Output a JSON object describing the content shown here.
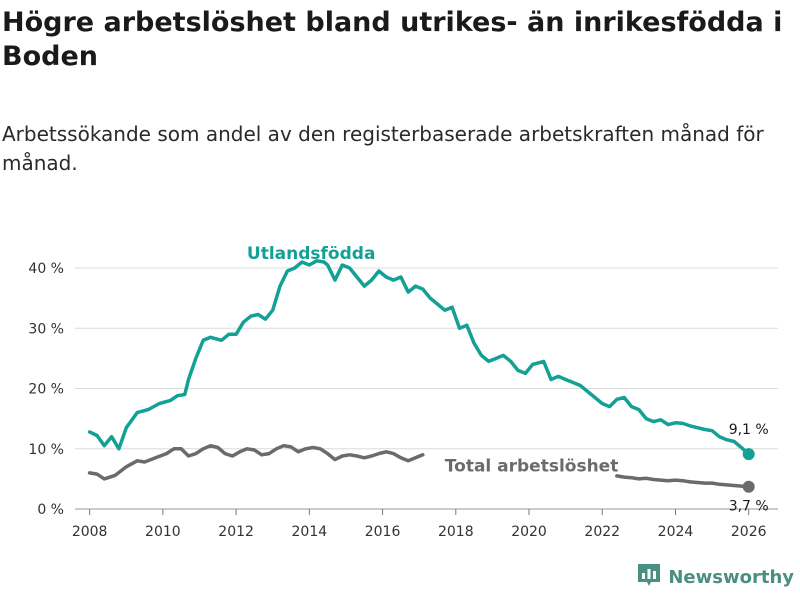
{
  "header": {
    "title": "Högre arbetslöshet bland utrikes- än inrikesfödda i Boden",
    "subtitle": "Arbetssökande som andel av den registerbaserade arbetskraften månad för månad."
  },
  "brand": {
    "name": "Newsworthy",
    "icon": "newsworthy-logo-icon",
    "color": "#4a8f80"
  },
  "chart_data": {
    "type": "line",
    "title": "Högre arbetslöshet bland utrikes- än inrikesfödda i Boden",
    "subtitle": "Arbetssökande som andel av den registerbaserade arbetskraften månad för månad.",
    "xlabel": "",
    "ylabel": "",
    "xlim": [
      2007.6,
      2026.8
    ],
    "ylim": [
      0,
      40
    ],
    "x_ticks": [
      2008,
      2010,
      2012,
      2014,
      2016,
      2018,
      2020,
      2022,
      2024,
      2026
    ],
    "x_tick_labels": [
      "2008",
      "2010",
      "2012",
      "2014",
      "2016",
      "2018",
      "2020",
      "2022",
      "2024",
      "2026"
    ],
    "y_ticks": [
      0,
      10,
      20,
      30,
      40
    ],
    "y_tick_labels": [
      "0 %",
      "10 %",
      "20 %",
      "30 %",
      "40 %"
    ],
    "grid": true,
    "series": [
      {
        "name": "Utlandsfödda",
        "color": "#13a196",
        "end_label": "9,1 %",
        "points": [
          [
            2008.0,
            12.8
          ],
          [
            2008.2,
            12.2
          ],
          [
            2008.4,
            10.5
          ],
          [
            2008.6,
            12.0
          ],
          [
            2008.8,
            10.0
          ],
          [
            2009.0,
            13.5
          ],
          [
            2009.3,
            16.0
          ],
          [
            2009.6,
            16.5
          ],
          [
            2009.9,
            17.5
          ],
          [
            2010.2,
            18.0
          ],
          [
            2010.4,
            18.8
          ],
          [
            2010.6,
            19.0
          ],
          [
            2010.7,
            21.5
          ],
          [
            2010.9,
            25.0
          ],
          [
            2011.1,
            28.0
          ],
          [
            2011.3,
            28.5
          ],
          [
            2011.6,
            28.0
          ],
          [
            2011.8,
            29.0
          ],
          [
            2012.0,
            29.0
          ],
          [
            2012.2,
            31.0
          ],
          [
            2012.4,
            32.0
          ],
          [
            2012.6,
            32.3
          ],
          [
            2012.8,
            31.5
          ],
          [
            2013.0,
            33.0
          ],
          [
            2013.2,
            37.0
          ],
          [
            2013.4,
            39.5
          ],
          [
            2013.6,
            40.0
          ],
          [
            2013.8,
            41.0
          ],
          [
            2014.0,
            40.5
          ],
          [
            2014.2,
            41.2
          ],
          [
            2014.4,
            41.0
          ],
          [
            2014.5,
            40.5
          ],
          [
            2014.7,
            38.0
          ],
          [
            2014.9,
            40.5
          ],
          [
            2015.1,
            40.0
          ],
          [
            2015.3,
            38.5
          ],
          [
            2015.5,
            37.0
          ],
          [
            2015.7,
            38.0
          ],
          [
            2015.9,
            39.5
          ],
          [
            2016.1,
            38.5
          ],
          [
            2016.3,
            38.0
          ],
          [
            2016.5,
            38.5
          ],
          [
            2016.7,
            36.0
          ],
          [
            2016.9,
            37.0
          ],
          [
            2017.1,
            36.5
          ],
          [
            2017.3,
            35.0
          ],
          [
            2017.5,
            34.0
          ],
          [
            2017.7,
            33.0
          ],
          [
            2017.9,
            33.5
          ],
          [
            2018.1,
            30.0
          ],
          [
            2018.3,
            30.5
          ],
          [
            2018.5,
            27.5
          ],
          [
            2018.7,
            25.5
          ],
          [
            2018.9,
            24.5
          ],
          [
            2019.1,
            25.0
          ],
          [
            2019.3,
            25.5
          ],
          [
            2019.5,
            24.5
          ],
          [
            2019.7,
            23.0
          ],
          [
            2019.9,
            22.5
          ],
          [
            2020.1,
            24.0
          ],
          [
            2020.4,
            24.5
          ],
          [
            2020.6,
            21.5
          ],
          [
            2020.8,
            22.0
          ],
          [
            2021.0,
            21.5
          ],
          [
            2021.2,
            21.0
          ],
          [
            2021.4,
            20.5
          ],
          [
            2021.6,
            19.5
          ],
          [
            2021.8,
            18.5
          ],
          [
            2022.0,
            17.5
          ],
          [
            2022.2,
            17.0
          ],
          [
            2022.4,
            18.2
          ],
          [
            2022.6,
            18.5
          ],
          [
            2022.8,
            17.0
          ],
          [
            2023.0,
            16.5
          ],
          [
            2023.2,
            15.0
          ],
          [
            2023.4,
            14.5
          ],
          [
            2023.6,
            14.8
          ],
          [
            2023.8,
            14.0
          ],
          [
            2024.0,
            14.3
          ],
          [
            2024.2,
            14.2
          ],
          [
            2024.4,
            13.8
          ],
          [
            2024.6,
            13.5
          ],
          [
            2024.8,
            13.2
          ],
          [
            2025.0,
            13.0
          ],
          [
            2025.2,
            12.0
          ],
          [
            2025.4,
            11.5
          ],
          [
            2025.6,
            11.2
          ],
          [
            2025.8,
            10.2
          ],
          [
            2026.0,
            9.1
          ]
        ]
      },
      {
        "name": "Total arbetslöshet",
        "color": "#6b6b6b",
        "end_label": "3,7 %",
        "points": [
          [
            2008.0,
            6.0
          ],
          [
            2008.2,
            5.8
          ],
          [
            2008.4,
            5.0
          ],
          [
            2008.7,
            5.6
          ],
          [
            2009.0,
            7.0
          ],
          [
            2009.3,
            8.0
          ],
          [
            2009.5,
            7.8
          ],
          [
            2009.8,
            8.5
          ],
          [
            2010.1,
            9.2
          ],
          [
            2010.3,
            10.0
          ],
          [
            2010.5,
            10.0
          ],
          [
            2010.7,
            8.8
          ],
          [
            2010.9,
            9.2
          ],
          [
            2011.1,
            10.0
          ],
          [
            2011.3,
            10.5
          ],
          [
            2011.5,
            10.2
          ],
          [
            2011.7,
            9.2
          ],
          [
            2011.9,
            8.8
          ],
          [
            2012.1,
            9.5
          ],
          [
            2012.3,
            10.0
          ],
          [
            2012.5,
            9.8
          ],
          [
            2012.7,
            9.0
          ],
          [
            2012.9,
            9.2
          ],
          [
            2013.1,
            10.0
          ],
          [
            2013.3,
            10.5
          ],
          [
            2013.5,
            10.3
          ],
          [
            2013.7,
            9.5
          ],
          [
            2013.9,
            10.0
          ],
          [
            2014.1,
            10.2
          ],
          [
            2014.3,
            10.0
          ],
          [
            2014.5,
            9.2
          ],
          [
            2014.7,
            8.2
          ],
          [
            2014.9,
            8.8
          ],
          [
            2015.1,
            9.0
          ],
          [
            2015.3,
            8.8
          ],
          [
            2015.5,
            8.5
          ],
          [
            2015.7,
            8.8
          ],
          [
            2015.9,
            9.2
          ],
          [
            2016.1,
            9.5
          ],
          [
            2016.3,
            9.2
          ],
          [
            2016.5,
            8.5
          ],
          [
            2016.7,
            8.0
          ],
          [
            2016.9,
            8.5
          ],
          [
            2017.1,
            9.0
          ],
          null,
          [
            2022.4,
            5.5
          ],
          [
            2022.6,
            5.3
          ],
          [
            2022.8,
            5.2
          ],
          [
            2023.0,
            5.0
          ],
          [
            2023.2,
            5.1
          ],
          [
            2023.4,
            4.9
          ],
          [
            2023.6,
            4.8
          ],
          [
            2023.8,
            4.7
          ],
          [
            2024.0,
            4.8
          ],
          [
            2024.2,
            4.7
          ],
          [
            2024.4,
            4.5
          ],
          [
            2024.6,
            4.4
          ],
          [
            2024.8,
            4.3
          ],
          [
            2025.0,
            4.3
          ],
          [
            2025.2,
            4.1
          ],
          [
            2025.4,
            4.0
          ],
          [
            2025.6,
            3.9
          ],
          [
            2025.8,
            3.8
          ],
          [
            2026.0,
            3.7
          ]
        ]
      }
    ]
  }
}
